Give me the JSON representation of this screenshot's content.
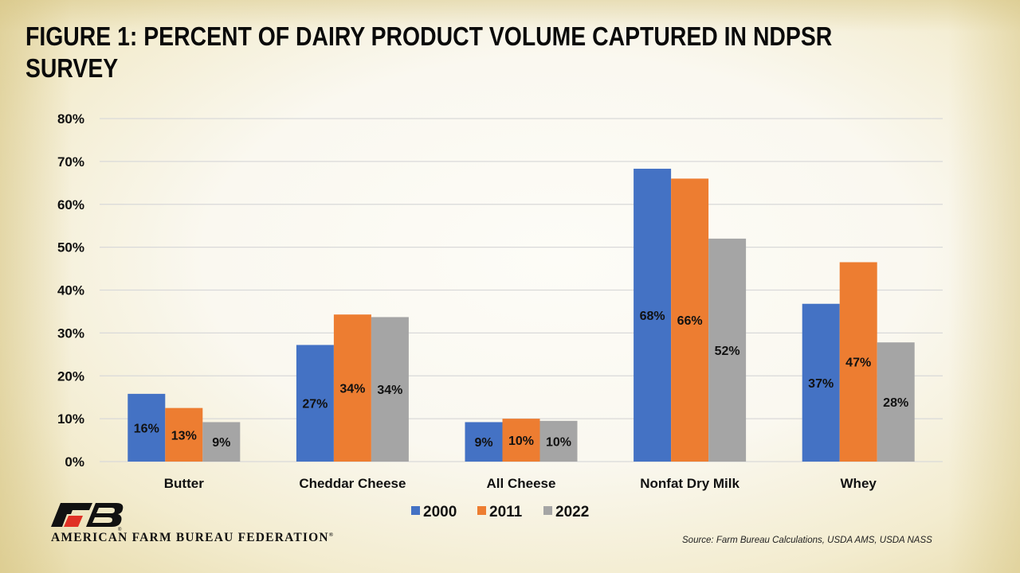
{
  "title": "FIGURE 1: PERCENT OF DAIRY PRODUCT VOLUME CAPTURED IN NDPSR SURVEY",
  "organization": "AMERICAN FARM BUREAU FEDERATION",
  "source": "Source: Farm Bureau Calculations, USDA AMS, USDA NASS",
  "chart_data": {
    "type": "bar",
    "title": "FIGURE 1: PERCENT OF DAIRY PRODUCT VOLUME CAPTURED IN NDPSR SURVEY",
    "xlabel": "",
    "ylabel": "",
    "ylim": [
      0,
      80
    ],
    "yticks": [
      0,
      10,
      20,
      30,
      40,
      50,
      60,
      70,
      80
    ],
    "ytick_labels": [
      "0%",
      "10%",
      "20%",
      "30%",
      "40%",
      "50%",
      "60%",
      "70%",
      "80%"
    ],
    "grid": true,
    "legend_position": "bottom",
    "categories": [
      "Butter",
      "Cheddar Cheese",
      "All Cheese",
      "Nonfat Dry Milk",
      "Whey"
    ],
    "series": [
      {
        "name": "2000",
        "color": "#4472C4",
        "values": [
          15.8,
          27.2,
          9.2,
          68.3,
          36.8
        ],
        "labels": [
          "16%",
          "27%",
          "9%",
          "68%",
          "37%"
        ]
      },
      {
        "name": "2011",
        "color": "#ED7D31",
        "values": [
          12.5,
          34.3,
          10.0,
          66.0,
          46.5
        ],
        "labels": [
          "13%",
          "34%",
          "10%",
          "66%",
          "47%"
        ]
      },
      {
        "name": "2022",
        "color": "#A5A5A5",
        "values": [
          9.2,
          33.7,
          9.5,
          52.0,
          27.8
        ],
        "labels": [
          "9%",
          "34%",
          "10%",
          "52%",
          "28%"
        ]
      }
    ]
  }
}
